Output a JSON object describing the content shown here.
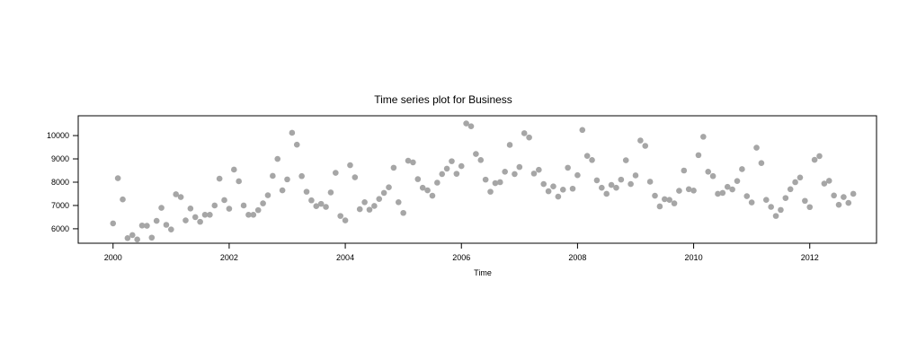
{
  "chart_data": {
    "type": "scatter",
    "title": "Time series plot for Business",
    "xlabel": "Time",
    "ylabel": "",
    "xlim": [
      1999.4,
      2013.15
    ],
    "ylim": [
      5380,
      10850
    ],
    "x_ticks": [
      2000,
      2002,
      2004,
      2006,
      2008,
      2010,
      2012
    ],
    "y_ticks": [
      6000,
      7000,
      8000,
      9000,
      10000
    ],
    "grid": false,
    "point_color": "#a6a6a6",
    "start": 2000,
    "frequency": 12,
    "series": [
      {
        "values": [
          6230,
          8170,
          7260,
          5600,
          5730,
          5540,
          6140,
          6130,
          5620,
          6340,
          6900,
          6170,
          5970,
          7480,
          7360,
          6360,
          6870,
          6500,
          6300,
          6600,
          6600,
          7000,
          8150,
          7230,
          6860,
          8540,
          8040,
          7000,
          6600,
          6600,
          6800,
          7090,
          7440,
          8270,
          9000,
          7650,
          8120,
          10120,
          9610,
          8260,
          7590,
          7220,
          6970,
          7070,
          6940,
          7560,
          8400,
          6550,
          6360,
          8730,
          8210,
          6840,
          7140,
          6820,
          6980,
          7280,
          7540,
          7780,
          8620,
          7140,
          6680,
          8920,
          8850,
          8130,
          7760,
          7650,
          7420,
          7980,
          8350,
          8580,
          8900,
          8360,
          8690,
          10520,
          10400,
          9210,
          8950,
          8110,
          7590,
          7960,
          8000,
          8450,
          9600,
          8350,
          8650,
          10100,
          9920,
          8370,
          8530,
          7920,
          7610,
          7820,
          7380,
          7680,
          8620,
          7720,
          8300,
          10240,
          9130,
          8950,
          8080,
          7760,
          7500,
          7880,
          7760,
          8110,
          8940,
          7920,
          8290,
          9790,
          9560,
          8020,
          7420,
          6960,
          7270,
          7240,
          7090,
          7630,
          8500,
          7700,
          7640,
          9160,
          9950,
          8450,
          8260,
          7500,
          7540,
          7800,
          7690,
          8050,
          8560,
          7400,
          7130,
          9480,
          8820,
          7240,
          6940,
          6550,
          6810,
          7320,
          7700,
          8000,
          8200,
          7200,
          6930,
          8960,
          9120,
          7940,
          8060,
          7430,
          7030,
          7360,
          7110,
          7500
        ]
      }
    ]
  }
}
